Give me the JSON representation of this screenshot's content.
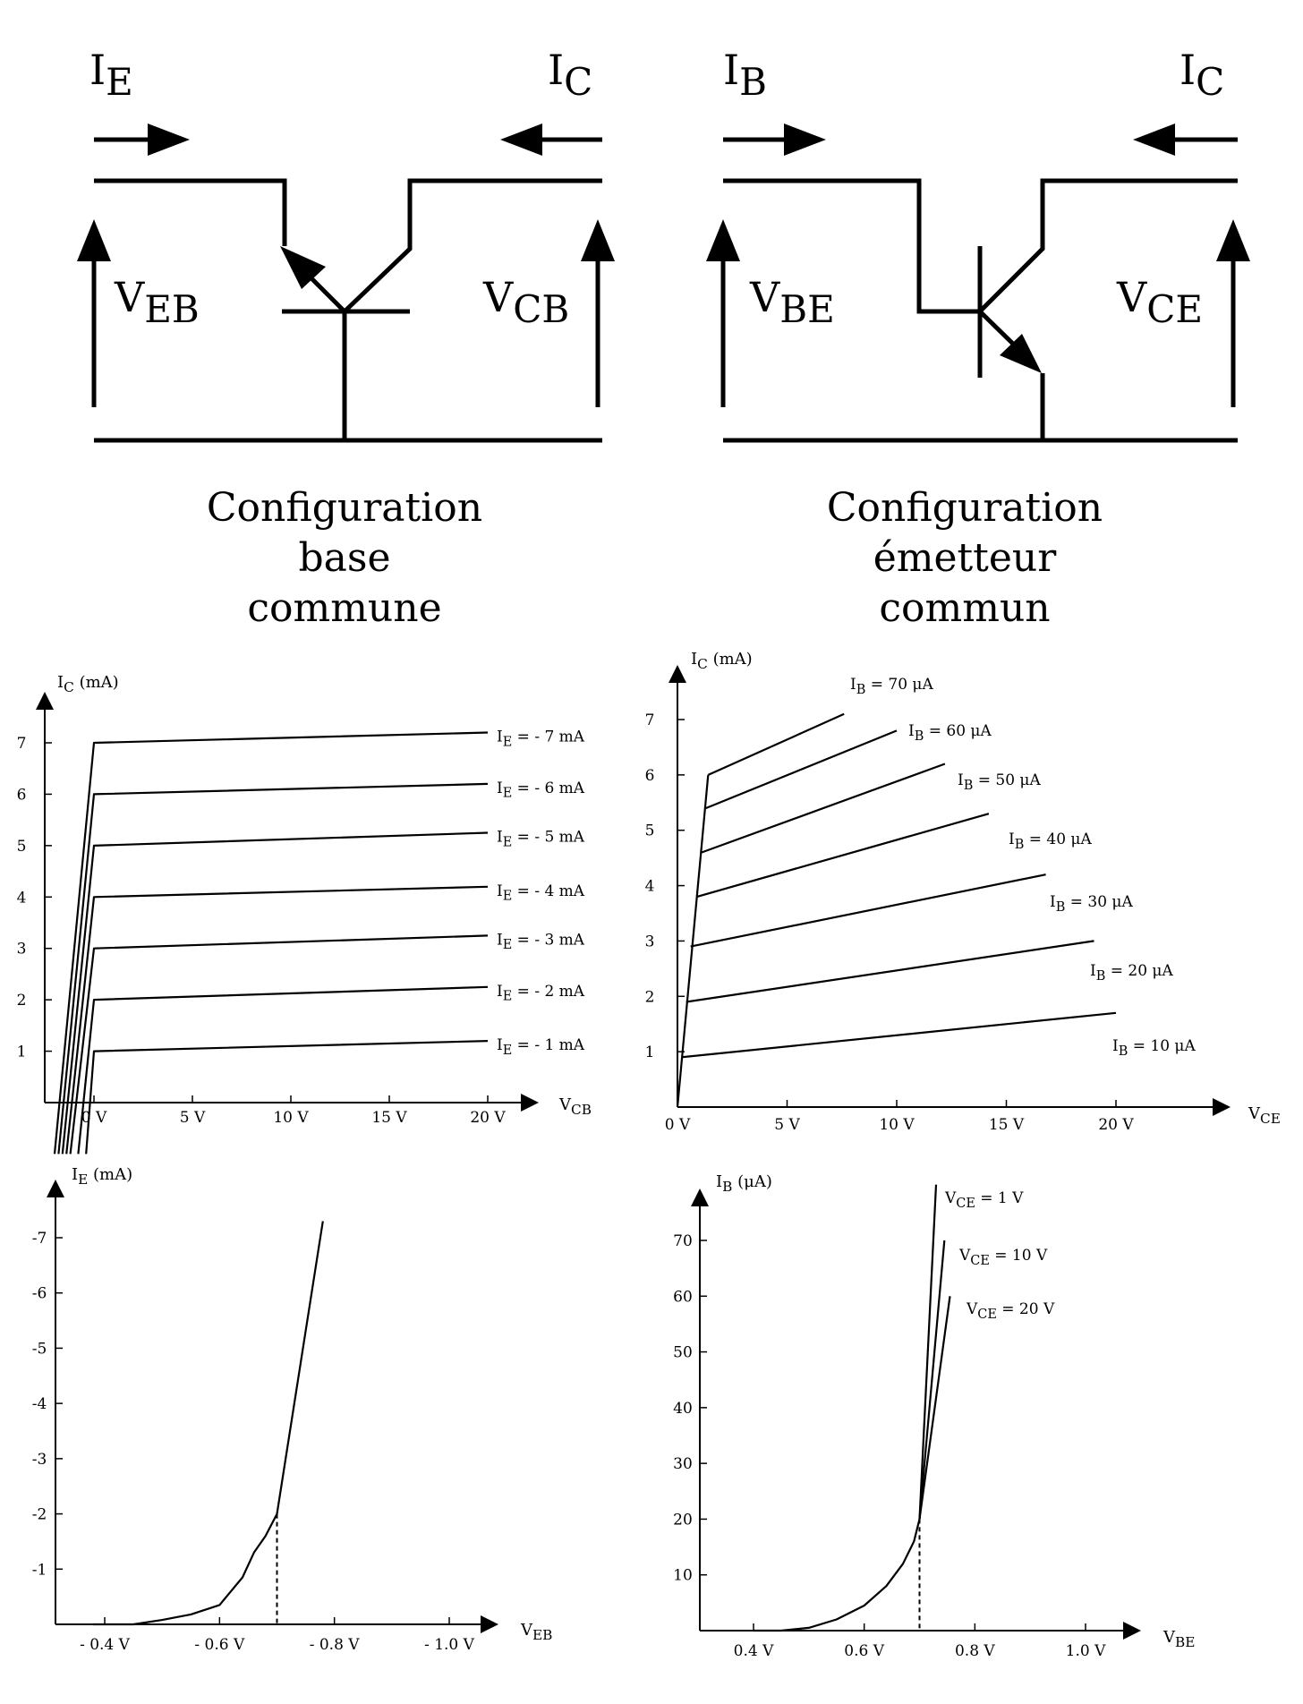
{
  "common_base": {
    "label_ie": "I",
    "label_ie_sub": "E",
    "label_ic": "I",
    "label_ic_sub": "C",
    "label_veb": "V",
    "label_veb_sub": "EB",
    "label_vcb": "V",
    "label_vcb_sub": "CB",
    "caption": [
      "Configuration",
      "base",
      "commune"
    ]
  },
  "common_emitter": {
    "label_ib": "I",
    "label_ib_sub": "B",
    "label_ic": "I",
    "label_ic_sub": "C",
    "label_vbe": "V",
    "label_vbe_sub": "BE",
    "label_vce": "V",
    "label_vce_sub": "CE",
    "caption": [
      "Configuration",
      "émetteur",
      "commun"
    ]
  },
  "chart_data": [
    {
      "type": "line",
      "title": "",
      "ylabel": "I",
      "ylabel_sub": "C",
      "ylabel_unit": " (mA)",
      "xlabel": "V",
      "xlabel_sub": "CB",
      "x_ticks": [
        "0 V",
        "5 V",
        "10 V",
        "15 V",
        "20 V"
      ],
      "y_ticks": [
        "1",
        "2",
        "3",
        "4",
        "5",
        "6",
        "7"
      ],
      "xlim": [
        -2.5,
        22.5
      ],
      "ylim": [
        -1.0,
        8.0
      ],
      "series": [
        {
          "name": "I_E = - 1 mA",
          "label": [
            "I",
            "E",
            " = - 1 mA"
          ],
          "x": [
            -0.4,
            0.0,
            20.0
          ],
          "y": [
            -1.0,
            1.0,
            1.2
          ]
        },
        {
          "name": "I_E = - 2 mA",
          "label": [
            "I",
            "E",
            " = - 2 mA"
          ],
          "x": [
            -0.8,
            0.0,
            20.0
          ],
          "y": [
            -1.0,
            2.0,
            2.25
          ]
        },
        {
          "name": "I_E = - 3 mA",
          "label": [
            "I",
            "E",
            " = - 3 mA"
          ],
          "x": [
            -1.2,
            0.0,
            20.0
          ],
          "y": [
            -1.0,
            3.0,
            3.25
          ]
        },
        {
          "name": "I_E = - 4 mA",
          "label": [
            "I",
            "E",
            " = - 4 mA"
          ],
          "x": [
            -1.4,
            0.0,
            20.0
          ],
          "y": [
            -1.0,
            4.0,
            4.2
          ]
        },
        {
          "name": "I_E = - 5 mA",
          "label": [
            "I",
            "E",
            " = - 5 mA"
          ],
          "x": [
            -1.6,
            0.0,
            20.0
          ],
          "y": [
            -1.0,
            5.0,
            5.25
          ]
        },
        {
          "name": "I_E = - 6 mA",
          "label": [
            "I",
            "E",
            " = - 6 mA"
          ],
          "x": [
            -1.8,
            0.0,
            20.0
          ],
          "y": [
            -1.0,
            6.0,
            6.2
          ]
        },
        {
          "name": "I_E = - 7 mA",
          "label": [
            "I",
            "E",
            " = - 7 mA"
          ],
          "x": [
            -2.0,
            0.0,
            20.0
          ],
          "y": [
            -1.0,
            7.0,
            7.2
          ]
        }
      ]
    },
    {
      "type": "line",
      "title": "",
      "ylabel": "I",
      "ylabel_sub": "C",
      "ylabel_unit": " (mA)",
      "xlabel": "V",
      "xlabel_sub": "CE",
      "x_ticks": [
        "0 V",
        "5 V",
        "10 V",
        "15 V",
        "20 V"
      ],
      "y_ticks": [
        "1",
        "2",
        "3",
        "4",
        "5",
        "6",
        "7"
      ],
      "xlim": [
        0,
        25
      ],
      "ylim": [
        0,
        8
      ],
      "series": [
        {
          "name": "I_B = 10 μA",
          "label": [
            "I",
            "B",
            " = 10 μA"
          ],
          "x": [
            0.2,
            20.0
          ],
          "y": [
            0.9,
            1.7
          ]
        },
        {
          "name": "I_B = 20 μA",
          "label": [
            "I",
            "B",
            " = 20 μA"
          ],
          "x": [
            0.4,
            19.0
          ],
          "y": [
            1.9,
            3.0
          ]
        },
        {
          "name": "I_B = 30 μA",
          "label": [
            "I",
            "B",
            " = 30 μA"
          ],
          "x": [
            0.6,
            16.8
          ],
          "y": [
            2.9,
            4.2
          ]
        },
        {
          "name": "I_B = 40 μA",
          "label": [
            "I",
            "B",
            " = 40 μA"
          ],
          "x": [
            0.9,
            14.2
          ],
          "y": [
            3.8,
            5.3
          ]
        },
        {
          "name": "I_B = 50 μA",
          "label": [
            "I",
            "B",
            " = 50 μA"
          ],
          "x": [
            1.1,
            12.2
          ],
          "y": [
            4.6,
            6.2
          ]
        },
        {
          "name": "I_B = 60 μA",
          "label": [
            "I",
            "B",
            " = 60 μA"
          ],
          "x": [
            1.3,
            10.0
          ],
          "y": [
            5.4,
            6.8
          ]
        },
        {
          "name": "I_B = 70 μA",
          "label": [
            "I",
            "B",
            " = 70 μA"
          ],
          "x": [
            1.4,
            7.6
          ],
          "y": [
            6.0,
            7.1
          ]
        }
      ],
      "saturation_line": {
        "x": [
          0.0,
          1.4
        ],
        "y": [
          0.0,
          6.0
        ]
      }
    },
    {
      "type": "line",
      "title": "",
      "ylabel": "I",
      "ylabel_sub": "E",
      "ylabel_unit": " (mA)",
      "xlabel": "V",
      "xlabel_sub": "EB",
      "x_ticks": [
        "- 0.4 V",
        "- 0.6 V",
        "- 0.8 V",
        "- 1.0 V"
      ],
      "y_ticks": [
        "-1",
        "-2",
        "-3",
        "-4",
        "-5",
        "-6",
        "-7"
      ],
      "xlim": [
        -0.3,
        -1.1
      ],
      "ylim": [
        0,
        -8
      ],
      "series": [
        {
          "name": "I_E(V_EB)",
          "x": [
            -0.38,
            -0.45,
            -0.5,
            -0.55,
            -0.6,
            -0.64,
            -0.66,
            -0.68,
            -0.7,
            -0.78
          ],
          "y": [
            0,
            0,
            -0.08,
            -0.18,
            -0.35,
            -0.85,
            -1.3,
            -1.6,
            -2.0,
            -7.3
          ]
        }
      ],
      "reference": {
        "x": -0.7,
        "y": -2.0
      }
    },
    {
      "type": "line",
      "title": "",
      "ylabel": "I",
      "ylabel_sub": "B",
      "ylabel_unit": " (μA)",
      "xlabel": "V",
      "xlabel_sub": "BE",
      "x_ticks": [
        "0.4 V",
        "0.6 V",
        "0.8 V",
        "1.0 V"
      ],
      "y_ticks": [
        "10",
        "20",
        "30",
        "40",
        "50",
        "60",
        "70"
      ],
      "xlim": [
        0.3,
        1.1
      ],
      "ylim": [
        0,
        80
      ],
      "series": [
        {
          "name": "V_CE = 1 V",
          "label": [
            "V",
            "CE",
            " = 1 V"
          ],
          "x": [
            0.4,
            0.45,
            0.5,
            0.55,
            0.6,
            0.64,
            0.67,
            0.69,
            0.7,
            0.73
          ],
          "y": [
            0,
            0,
            0.5,
            2,
            4.5,
            8,
            12,
            16,
            20,
            80
          ]
        },
        {
          "name": "V_CE = 10 V",
          "label": [
            "V",
            "CE",
            " = 10 V"
          ],
          "x": [
            0.7,
            0.745
          ],
          "y": [
            20,
            70
          ]
        },
        {
          "name": "V_CE = 20 V",
          "label": [
            "V",
            "CE",
            " = 20 V"
          ],
          "x": [
            0.7,
            0.755
          ],
          "y": [
            20,
            60
          ]
        }
      ],
      "reference": {
        "x": 0.7,
        "y": 20
      }
    }
  ]
}
